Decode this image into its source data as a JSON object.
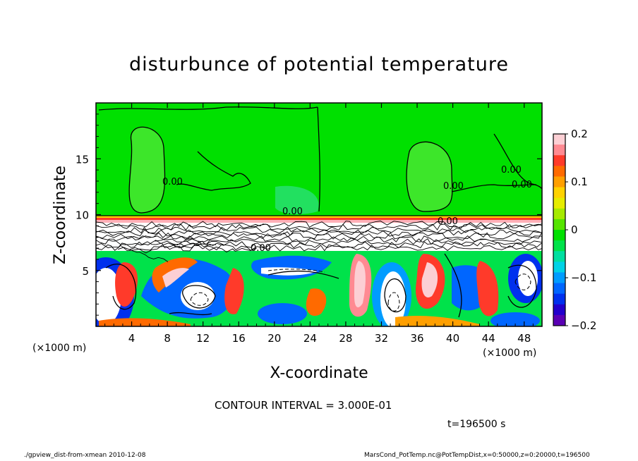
{
  "chart_data": {
    "type": "heatmap",
    "title": "disturbunce of potential temperature",
    "xlabel": "X-coordinate",
    "ylabel": "Z-coordinate",
    "x_unit_label": "(×1000 m)",
    "z_unit_label": "(×1000 m)",
    "x_ticks": [
      4,
      8,
      12,
      16,
      20,
      24,
      28,
      32,
      36,
      40,
      44,
      48
    ],
    "z_ticks": [
      5,
      10,
      15
    ],
    "xlim": [
      0,
      50
    ],
    "zlim": [
      0,
      20
    ],
    "colorbar": {
      "range": [
        -0.2,
        0.2
      ],
      "ticks": [
        0.2,
        0.1,
        0,
        -0.1,
        -0.2
      ],
      "tick_labels": [
        "0.2",
        "0.1",
        "0",
        "−0.1",
        "−0.2"
      ],
      "colors": [
        "#fccfd4",
        "#ff8a92",
        "#ff3a2a",
        "#ff6a00",
        "#ff9f00",
        "#ffd200",
        "#e6ec00",
        "#a6ea00",
        "#55e400",
        "#00e000",
        "#00e24a",
        "#00dfa0",
        "#00d2e6",
        "#009cff",
        "#0066ff",
        "#0030ee",
        "#2200cc",
        "#5a00b4"
      ]
    },
    "contour_labels": [
      "0.00",
      "0.00",
      "0.00",
      "0.00",
      "0.00",
      "0.00",
      "0.00"
    ],
    "contour_interval_text": "CONTOUR INTERVAL = 3.000E-01",
    "time_text": "t=196500  s"
  },
  "footer": {
    "left": "./gpview_dist-from-xmean  2010-12-08",
    "right": "MarsCond_PotTemp.nc@PotTempDist,x=0:50000,z=0:20000,t=196500"
  }
}
